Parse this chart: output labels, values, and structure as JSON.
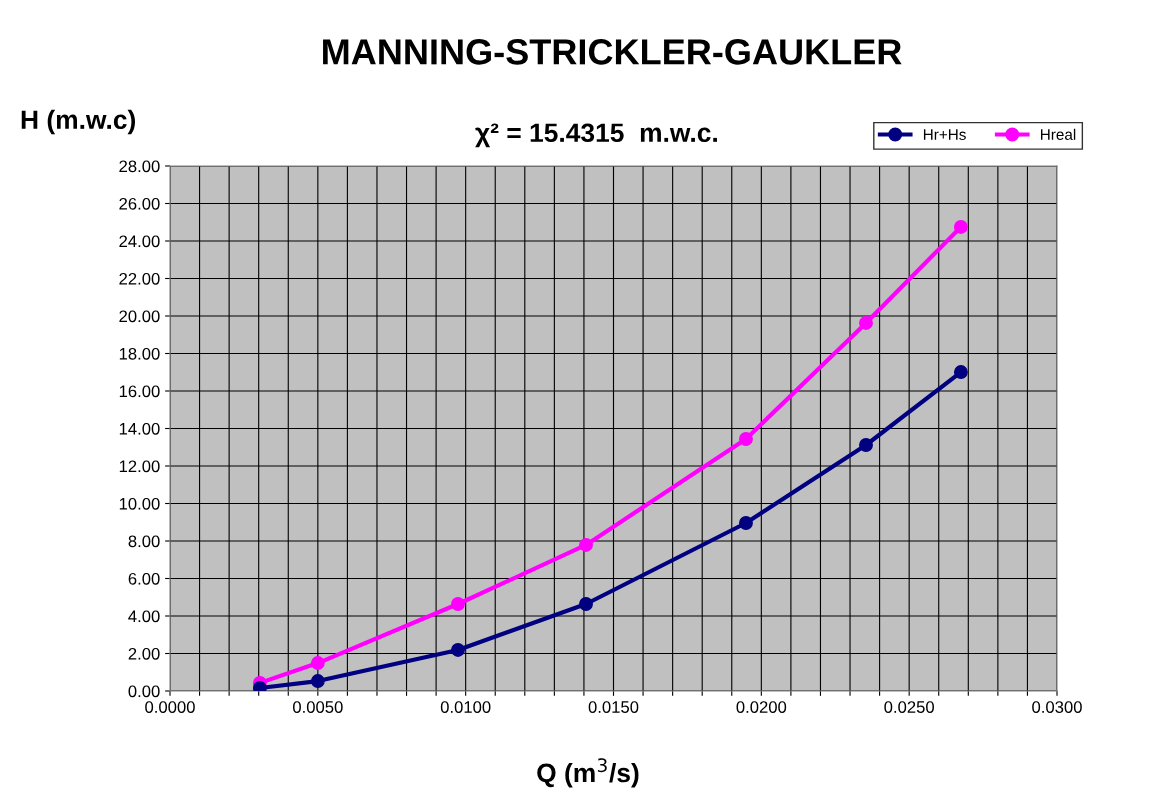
{
  "chart_data": {
    "type": "line",
    "title": "MANNING-STRICKLER-GAUKLER",
    "xlabel": "Q (m$^{3}$/s)",
    "ylabel": "H (m.w.c)",
    "annotations": [
      "χ² = 15.4315  m.w.c."
    ],
    "series": [
      {
        "name": "Hr+Hs",
        "color": "#000080",
        "x": [
          0.00304,
          0.005,
          0.00974,
          0.01407,
          0.01948,
          0.02354,
          0.02675
        ],
        "values": [
          0.16,
          0.53,
          2.19,
          4.64,
          8.96,
          13.12,
          17.01
        ]
      },
      {
        "name": "Hreal",
        "color": "#ff00ff",
        "x": [
          0.00304,
          0.005,
          0.00974,
          0.01407,
          0.01948,
          0.02354,
          0.02675
        ],
        "values": [
          0.43,
          1.49,
          4.64,
          7.79,
          13.44,
          19.63,
          24.75
        ]
      }
    ],
    "xlim": [
      0,
      0.03
    ],
    "ylim": [
      0,
      28
    ],
    "xticks": [
      {
        "value": 0,
        "label": "0.0000"
      },
      {
        "value": 0.001,
        "label": null
      },
      {
        "value": 0.002,
        "label": null
      },
      {
        "value": 0.003,
        "label": null
      },
      {
        "value": 0.004,
        "label": null
      },
      {
        "value": 0.005,
        "label": "0.0050"
      },
      {
        "value": 0.006,
        "label": null
      },
      {
        "value": 0.007,
        "label": null
      },
      {
        "value": 0.008,
        "label": null
      },
      {
        "value": 0.009,
        "label": null
      },
      {
        "value": 0.01,
        "label": "0.0100"
      },
      {
        "value": 0.011,
        "label": null
      },
      {
        "value": 0.012,
        "label": null
      },
      {
        "value": 0.013,
        "label": null
      },
      {
        "value": 0.014,
        "label": null
      },
      {
        "value": 0.015,
        "label": "0.0150"
      },
      {
        "value": 0.016,
        "label": null
      },
      {
        "value": 0.017,
        "label": null
      },
      {
        "value": 0.018,
        "label": null
      },
      {
        "value": 0.019,
        "label": null
      },
      {
        "value": 0.02,
        "label": "0.0200"
      },
      {
        "value": 0.021,
        "label": null
      },
      {
        "value": 0.022,
        "label": null
      },
      {
        "value": 0.023,
        "label": null
      },
      {
        "value": 0.024,
        "label": null
      },
      {
        "value": 0.025,
        "label": "0.0250"
      },
      {
        "value": 0.026,
        "label": null
      },
      {
        "value": 0.027,
        "label": null
      },
      {
        "value": 0.028,
        "label": null
      },
      {
        "value": 0.029,
        "label": null
      },
      {
        "value": 0.03,
        "label": "0.0300"
      }
    ],
    "yticks": [
      {
        "value": 0,
        "label": "0.00"
      },
      {
        "value": 2,
        "label": "2.00"
      },
      {
        "value": 4,
        "label": "4.00"
      },
      {
        "value": 6,
        "label": "6.00"
      },
      {
        "value": 8,
        "label": "8.00"
      },
      {
        "value": 10,
        "label": "10.00"
      },
      {
        "value": 12,
        "label": "12.00"
      },
      {
        "value": 14,
        "label": "14.00"
      },
      {
        "value": 16,
        "label": "16.00"
      },
      {
        "value": 18,
        "label": "18.00"
      },
      {
        "value": 20,
        "label": "20.00"
      },
      {
        "value": 22,
        "label": "22.00"
      },
      {
        "value": 24,
        "label": "24.00"
      },
      {
        "value": 26,
        "label": "26.00"
      },
      {
        "value": 28,
        "label": "28.00"
      }
    ],
    "grid": true,
    "legend": "top right",
    "marker": "circle",
    "line_style": "solid"
  }
}
